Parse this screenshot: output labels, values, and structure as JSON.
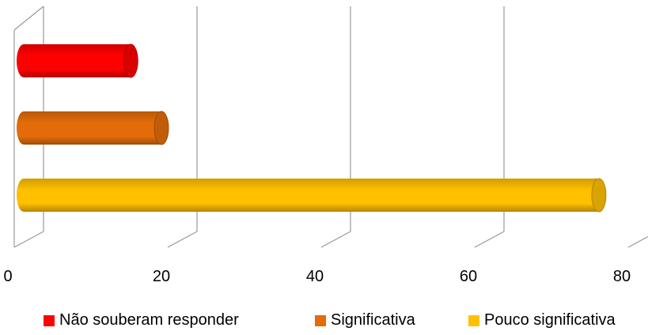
{
  "chart_data": {
    "type": "bar",
    "orientation": "horizontal",
    "style": "3d-cylinder",
    "xlim": [
      0,
      80
    ],
    "xticks": [
      "0",
      "20",
      "40",
      "60",
      "80"
    ],
    "grid": true,
    "legend_position": "bottom",
    "series": [
      {
        "name": "Não souberam responder",
        "value": 16,
        "color": "#ff0000"
      },
      {
        "name": "Significativa",
        "value": 20,
        "color": "#e36c09"
      },
      {
        "name": "Pouco significativa",
        "value": 77,
        "color": "#ffc000"
      }
    ]
  }
}
